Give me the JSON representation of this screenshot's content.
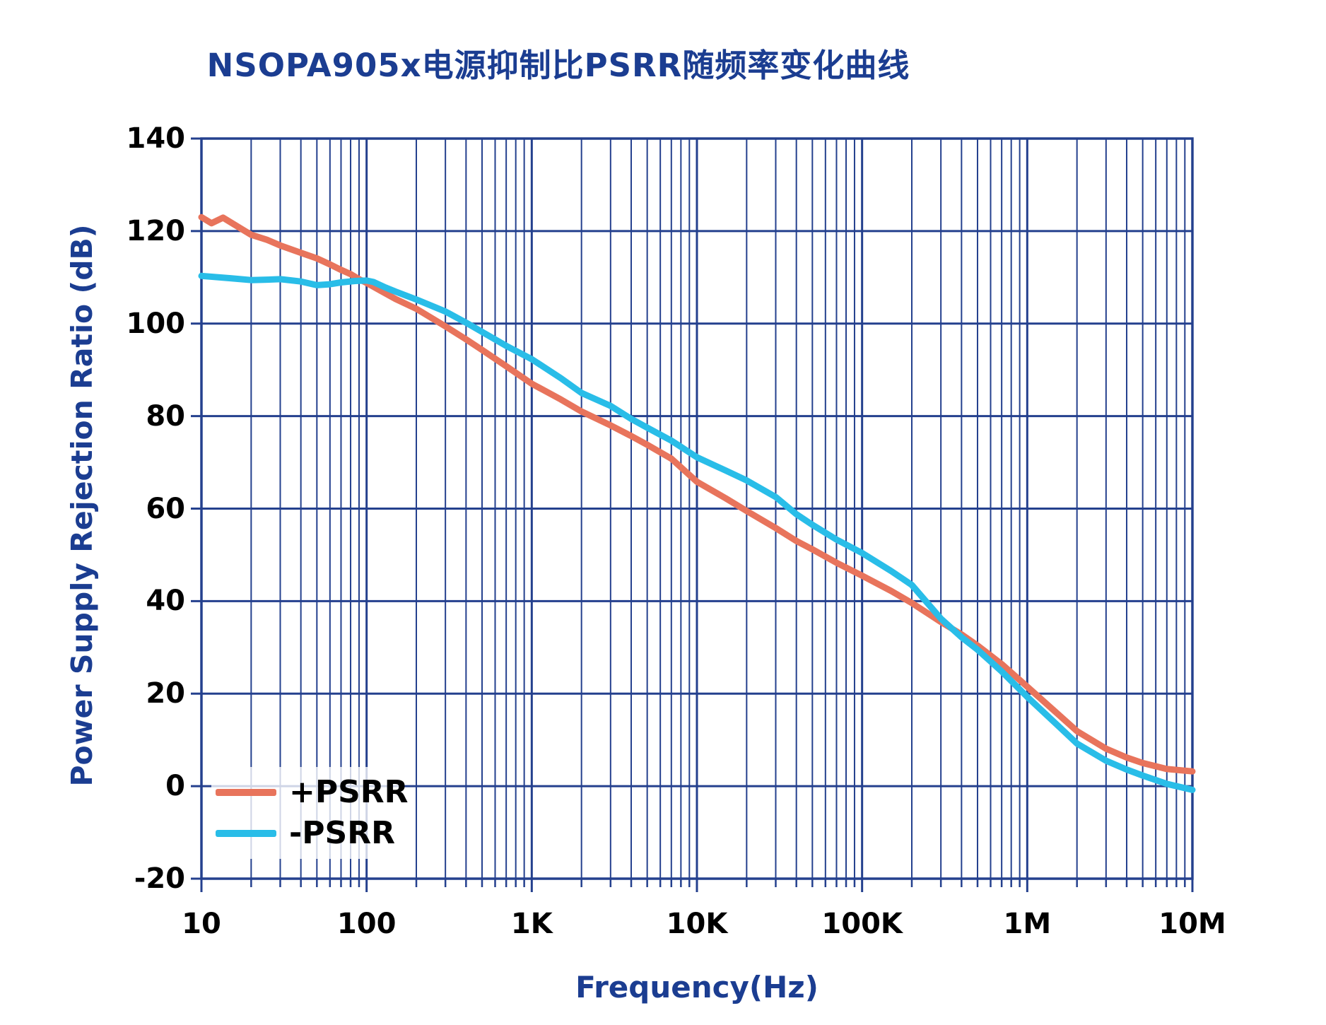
{
  "page": {
    "background": "#ffffff"
  },
  "chart_data": {
    "type": "line",
    "title": "NSOPA905x电源抑制比PSRR随频率变化曲线",
    "xlabel": "Frequency(Hz)",
    "ylabel": "Power Supply Rejection Ratio (dB)",
    "x_scale": "log",
    "xlim": [
      10,
      10000000
    ],
    "ylim": [
      -20,
      140
    ],
    "y_ticks": [
      -20,
      0,
      20,
      40,
      60,
      80,
      100,
      120,
      140
    ],
    "x_ticks": [
      {
        "value": 10,
        "label": "10"
      },
      {
        "value": 100,
        "label": "100"
      },
      {
        "value": 1000,
        "label": "1K"
      },
      {
        "value": 10000,
        "label": "10K"
      },
      {
        "value": 100000,
        "label": "100K"
      },
      {
        "value": 1000000,
        "label": "1M"
      },
      {
        "value": 10000000,
        "label": "10M"
      }
    ],
    "grid": "major+minor log grid, full frame",
    "legend_position": "lower-left",
    "colors": {
      "grid": "#24408e",
      "frame": "#24408e",
      "title_text": "#1b3d91",
      "tick_text": "#000000",
      "plus_psrr": "#e8745c",
      "minus_psrr": "#29bde8"
    },
    "series": [
      {
        "name": "+PSRR",
        "color": "#e8745c",
        "points": [
          [
            10,
            123.0
          ],
          [
            11.5,
            121.7
          ],
          [
            13.5,
            122.9
          ],
          [
            16,
            121.3
          ],
          [
            20,
            119.2
          ],
          [
            25,
            118.1
          ],
          [
            30,
            116.9
          ],
          [
            40,
            115.3
          ],
          [
            50,
            114.1
          ],
          [
            60,
            112.8
          ],
          [
            70,
            111.6
          ],
          [
            80,
            110.7
          ],
          [
            90,
            109.6
          ],
          [
            100,
            108.8
          ],
          [
            120,
            107.2
          ],
          [
            150,
            105.3
          ],
          [
            200,
            103.2
          ],
          [
            300,
            99.4
          ],
          [
            400,
            96.6
          ],
          [
            500,
            94.3
          ],
          [
            700,
            90.8
          ],
          [
            1000,
            87.0
          ],
          [
            1500,
            83.6
          ],
          [
            2000,
            81.0
          ],
          [
            3000,
            78.0
          ],
          [
            4000,
            75.7
          ],
          [
            5000,
            73.8
          ],
          [
            7000,
            70.8
          ],
          [
            10000,
            65.8
          ],
          [
            15000,
            62.2
          ],
          [
            20000,
            59.5
          ],
          [
            30000,
            55.8
          ],
          [
            40000,
            53.0
          ],
          [
            50000,
            51.2
          ],
          [
            70000,
            48.3
          ],
          [
            100000,
            45.5
          ],
          [
            150000,
            42.2
          ],
          [
            200000,
            39.6
          ],
          [
            300000,
            35.5
          ],
          [
            400000,
            32.8
          ],
          [
            500000,
            30.4
          ],
          [
            700000,
            26.4
          ],
          [
            1000000,
            21.5
          ],
          [
            1500000,
            15.9
          ],
          [
            2000000,
            11.9
          ],
          [
            3000000,
            8.1
          ],
          [
            4000000,
            6.2
          ],
          [
            5000000,
            5.0
          ],
          [
            7000000,
            3.7
          ],
          [
            10000000,
            3.2
          ]
        ]
      },
      {
        "name": "-PSRR",
        "color": "#29bde8",
        "points": [
          [
            10,
            110.3
          ],
          [
            15,
            109.8
          ],
          [
            20,
            109.4
          ],
          [
            25,
            109.5
          ],
          [
            30,
            109.6
          ],
          [
            40,
            109.1
          ],
          [
            50,
            108.3
          ],
          [
            60,
            108.5
          ],
          [
            70,
            108.9
          ],
          [
            85,
            109.2
          ],
          [
            100,
            109.3
          ],
          [
            110,
            109.0
          ],
          [
            130,
            107.8
          ],
          [
            150,
            106.9
          ],
          [
            200,
            105.2
          ],
          [
            300,
            102.6
          ],
          [
            400,
            100.2
          ],
          [
            500,
            98.2
          ],
          [
            700,
            95.2
          ],
          [
            1000,
            92.3
          ],
          [
            1500,
            88.2
          ],
          [
            2000,
            85.0
          ],
          [
            3000,
            82.2
          ],
          [
            4000,
            79.4
          ],
          [
            5000,
            77.5
          ],
          [
            7000,
            74.7
          ],
          [
            10000,
            71.1
          ],
          [
            15000,
            68.2
          ],
          [
            20000,
            66.1
          ],
          [
            30000,
            62.5
          ],
          [
            40000,
            58.8
          ],
          [
            50000,
            56.5
          ],
          [
            70000,
            53.3
          ],
          [
            100000,
            50.4
          ],
          [
            150000,
            46.5
          ],
          [
            200000,
            43.5
          ],
          [
            300000,
            36.2
          ],
          [
            400000,
            32.2
          ],
          [
            500000,
            29.5
          ],
          [
            700000,
            24.8
          ],
          [
            1000000,
            19.3
          ],
          [
            1500000,
            13.4
          ],
          [
            2000000,
            9.2
          ],
          [
            3000000,
            5.5
          ],
          [
            4000000,
            3.6
          ],
          [
            5000000,
            2.3
          ],
          [
            7000000,
            0.5
          ],
          [
            10000000,
            -0.8
          ]
        ]
      }
    ]
  }
}
